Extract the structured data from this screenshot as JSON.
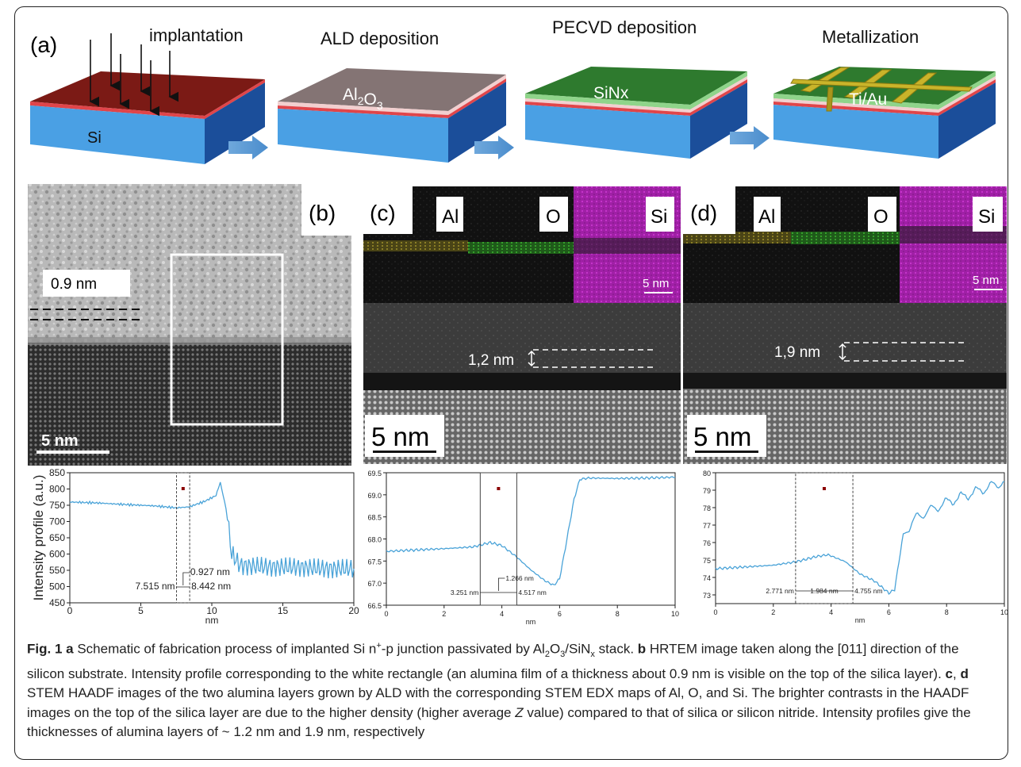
{
  "panel_a": {
    "label": "(a)",
    "steps": [
      {
        "title": "implantation",
        "layer_label": "Si"
      },
      {
        "title": "ALD deposition",
        "layer_label": "Al2O3"
      },
      {
        "title": "PECVD deposition",
        "layer_label": "SiNx"
      },
      {
        "title": "Metallization",
        "layer_label": "Ti/Au"
      }
    ]
  },
  "panel_b": {
    "label": "(b)",
    "thickness_label": "0.9 nm",
    "scalebar": "5 nm"
  },
  "panel_c": {
    "label": "(c)",
    "maps": [
      "Al",
      "O",
      "Si"
    ],
    "map_scalebar": "5 nm",
    "thickness_label": "1,2 nm",
    "scalebar": "5 nm"
  },
  "panel_d": {
    "label": "(d)",
    "maps": [
      "Al",
      "O",
      "Si"
    ],
    "map_scalebar": "5 nm",
    "thickness_label": "1,9 nm",
    "scalebar": "5 nm"
  },
  "chart_data": [
    {
      "type": "line",
      "ylabel": "Intensity profile (a.u.)",
      "xlabel": "nm",
      "xlim": [
        0,
        20
      ],
      "ylim": [
        450,
        850
      ],
      "xticks": [
        0,
        5,
        10,
        15,
        20
      ],
      "yticks": [
        450,
        500,
        550,
        600,
        650,
        700,
        750,
        800,
        850
      ],
      "color": "#4aa3d8",
      "series": [
        {
          "x": [
            0,
            2,
            4,
            6,
            7.5,
            8.4,
            9.5,
            10.3,
            10.6,
            11,
            11.4,
            12,
            14,
            16,
            18,
            20
          ],
          "y": [
            760,
            757,
            752,
            748,
            742,
            745,
            762,
            780,
            820,
            740,
            600,
            565,
            560,
            560,
            555,
            555
          ]
        }
      ],
      "markers": [
        {
          "x1": 7.515,
          "x2": 8.442
        }
      ],
      "annotations": [
        "0.927 nm",
        "7.515 nm",
        "8.442 nm"
      ]
    },
    {
      "type": "line",
      "xlabel": "nm",
      "xlim": [
        0,
        10
      ],
      "ylim": [
        66.5,
        69.5
      ],
      "xticks": [
        0,
        2,
        4,
        6,
        8,
        10
      ],
      "yticks": [
        66.5,
        67.0,
        67.5,
        68.0,
        68.5,
        69.0,
        69.5
      ],
      "color": "#4aa3d8",
      "series": [
        {
          "x": [
            0,
            1,
            2,
            3,
            3.6,
            4.0,
            4.5,
            5.0,
            5.5,
            5.8,
            6.0,
            6.2,
            6.5,
            6.7,
            7,
            8,
            9,
            10
          ],
          "y": [
            67.72,
            67.75,
            67.78,
            67.82,
            67.92,
            67.85,
            67.6,
            67.3,
            67.05,
            66.95,
            67.1,
            67.8,
            68.9,
            69.35,
            69.38,
            69.37,
            69.38,
            69.4
          ]
        }
      ],
      "markers": [
        {
          "x1": 3.251,
          "x2": 4.517
        }
      ],
      "annotations": [
        "1.266 nm",
        "3.251 nm",
        "4.517 nm"
      ]
    },
    {
      "type": "line",
      "xlabel": "nm",
      "xlim": [
        0,
        10
      ],
      "ylim": [
        72.5,
        80
      ],
      "xticks": [
        0,
        2,
        4,
        6,
        8,
        10
      ],
      "yticks": [
        73,
        74,
        75,
        76,
        77,
        78,
        79,
        80
      ],
      "color": "#4aa3d8",
      "series": [
        {
          "x": [
            0,
            1,
            2,
            2.8,
            3.5,
            3.9,
            4.5,
            5.0,
            5.5,
            6.0,
            6.2,
            6.5,
            7,
            8,
            9,
            10
          ],
          "y": [
            74.5,
            74.6,
            74.7,
            74.9,
            75.2,
            75.3,
            74.9,
            74.2,
            73.8,
            73.1,
            73.3,
            76.5,
            77.5,
            78.3,
            78.9,
            79.5
          ]
        }
      ],
      "markers": [
        {
          "x1": 2.771,
          "x2": 4.755
        }
      ],
      "annotations": [
        "2.771 nm",
        "1.984 nm",
        "4.755 nm"
      ]
    }
  ],
  "caption": {
    "fig": "Fig. 1",
    "a_letter": "a",
    "a_text_1": " Schematic of fabrication process of implanted Si n",
    "a_sup": "+",
    "a_text_2": "-p junction passivated by Al",
    "a_sub1": "2",
    "a_text_3": "O",
    "a_sub2": "3",
    "a_text_4": "/SiN",
    "a_sub3": "x",
    "a_text_5": " stack. ",
    "b_letter": "b",
    "b_text": " HRTEM image taken along the [011] direction of the silicon substrate. Intensity profile corresponding to the white rectangle (an alumina film of a thickness about 0.9 nm is visible on the top of the silica layer). ",
    "c_letter": "c",
    "cd_sep": ", ",
    "d_letter": "d",
    "d_text_1": " STEM HAADF images of the two alumina layers grown by ALD with the corresponding STEM EDX maps of Al, O, and Si. The brighter contrasts in the HAADF images on the top of the silica layer are due to the higher density (higher average ",
    "d_italic": "Z",
    "d_text_2": " value) compared to that of silica or silicon nitride. Intensity profiles give the thicknesses of alumina layers of ~ 1.2 nm and 1.9 nm, respectively"
  }
}
